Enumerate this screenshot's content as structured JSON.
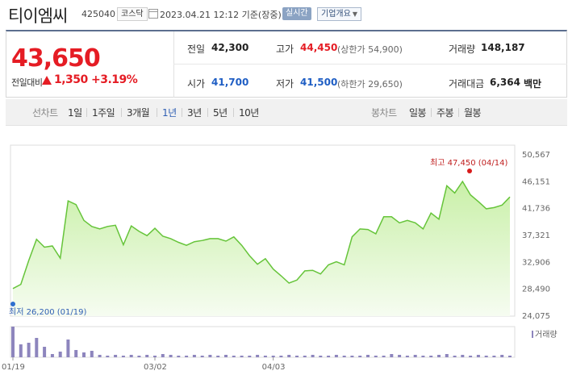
{
  "header": {
    "title": "티이엠씨",
    "code": "425040",
    "market": "코스닥",
    "datetime": "2023.04.21 12:12  기준(장중)",
    "realtime": "실시간",
    "company_info": "기업개요"
  },
  "price": {
    "current": "43,650",
    "prev_label": "전일대비",
    "change": "1,350",
    "rate": "+3.19%",
    "color_up": "#e51c24",
    "color_down": "#1f5ec4"
  },
  "stats": {
    "prev_close_label": "전일",
    "prev_close": "42,300",
    "high_label": "고가",
    "high": "44,450",
    "upper_limit": "(상한가 54,900)",
    "volume_label": "거래량",
    "volume": "148,187",
    "open_label": "시가",
    "open": "41,700",
    "low_label": "저가",
    "low": "41,500",
    "lower_limit": "(하한가 29,650)",
    "amount_label": "거래대금",
    "amount": "6,364",
    "amount_unit": "백만"
  },
  "tabs": {
    "line_label": "선차트",
    "line_tabs": [
      "1일",
      "1주일",
      "3개월",
      "1년",
      "3년",
      "5년",
      "10년"
    ],
    "active_index": 3,
    "candle_label": "봉차트",
    "candle_tabs": [
      "일봉",
      "주봉",
      "월봉"
    ]
  },
  "chart_data": {
    "type": "area",
    "y_ticks": [
      "50,567",
      "46,151",
      "41,736",
      "37,321",
      "32,906",
      "28,490",
      "24,075"
    ],
    "ylim": [
      24075,
      50567
    ],
    "x_ticks": [
      "01/19",
      "03/02",
      "04/03"
    ],
    "x_tick_index": [
      0,
      18,
      33
    ],
    "values": [
      28600,
      29300,
      33200,
      36700,
      35400,
      35600,
      33600,
      43000,
      42400,
      39800,
      38800,
      38400,
      38800,
      39000,
      35800,
      38900,
      38000,
      37300,
      38500,
      37200,
      36800,
      36200,
      35700,
      36300,
      36500,
      36800,
      36800,
      36400,
      37100,
      35700,
      34000,
      32600,
      33500,
      31800,
      30700,
      29500,
      30000,
      31500,
      31600,
      31000,
      32500,
      33000,
      32500,
      37100,
      38400,
      38300,
      37600,
      40400,
      40400,
      39400,
      39800,
      39400,
      38400,
      41000,
      40000,
      45500,
      44300,
      46200,
      44000,
      42900,
      41700,
      41900,
      42300,
      43650
    ],
    "high_annotation": "최고 47,450 (04/14)",
    "low_annotation": "최저 26,200 (01/19)",
    "line_color": "#66c43a",
    "fill_color": "#c9f0a8",
    "volume_legend": "거래량",
    "volume_color": "#8d85bd",
    "volume": [
      38,
      16,
      18,
      24,
      13,
      4,
      7,
      22,
      9,
      6,
      8,
      3,
      2,
      3,
      2,
      3,
      2,
      3,
      2,
      4,
      3,
      2,
      2,
      3,
      2,
      3,
      2,
      3,
      2,
      2,
      2,
      3,
      2,
      2,
      2,
      3,
      2,
      2,
      3,
      2,
      2,
      3,
      2,
      2,
      2,
      3,
      2,
      2,
      4,
      3,
      2,
      3,
      2,
      2,
      3,
      4,
      2,
      3,
      2,
      3,
      2,
      2,
      3,
      2
    ]
  }
}
